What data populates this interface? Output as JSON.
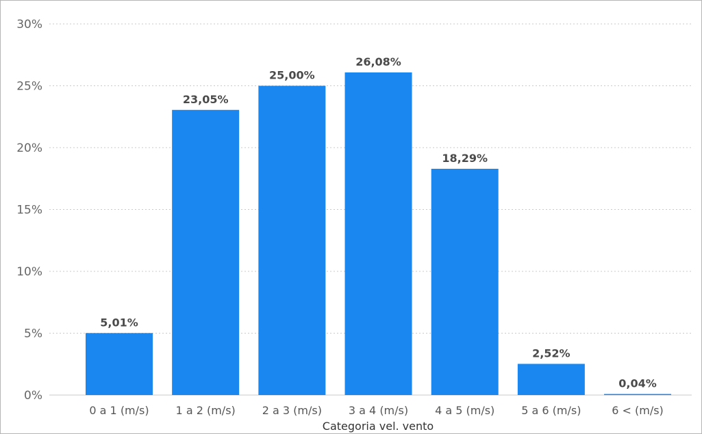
{
  "chart_data": {
    "type": "bar",
    "categories": [
      "0 a 1 (m/s)",
      "1 a 2 (m/s)",
      "2 a 3 (m/s)",
      "3 a 4 (m/s)",
      "4 a 5 (m/s)",
      "5 a 6 (m/s)",
      "6 < (m/s)"
    ],
    "values": [
      5.01,
      23.05,
      25.0,
      26.08,
      18.29,
      2.52,
      0.04
    ],
    "data_labels": [
      "5,01%",
      "23,05%",
      "25,00%",
      "26,08%",
      "18,29%",
      "2,52%",
      "0,04%"
    ],
    "y_ticks": [
      0,
      5,
      10,
      15,
      20,
      25,
      30
    ],
    "y_tick_labels": [
      "0%",
      "5%",
      "10%",
      "15%",
      "20%",
      "25%",
      "30%"
    ],
    "ylim": [
      0,
      30
    ],
    "xlabel": "Categoria vel. vento",
    "ylabel": "",
    "title": "",
    "grid": true,
    "bar_color": "#1a86f0"
  }
}
